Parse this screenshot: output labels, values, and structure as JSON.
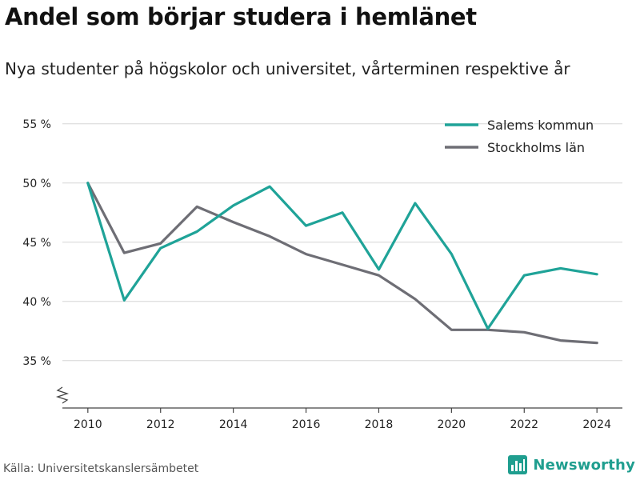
{
  "header": {
    "title": "Andel som börjar studera i hemlänet",
    "subtitle": "Nya studenter på högskolor och universitet, vårterminen respektive år"
  },
  "footer": {
    "source": "Källa: Universitetskanslersämbetet",
    "brand": "Newsworthy",
    "brand_icon": "bar-chart-logo-icon",
    "brand_color": "#1f9e8f"
  },
  "chart_data": {
    "type": "line",
    "title": "Andel som börjar studera i hemlänet",
    "subtitle": "Nya studenter på högskolor och universitet, vårterminen respektive år",
    "x": [
      2010,
      2011,
      2012,
      2013,
      2014,
      2015,
      2016,
      2017,
      2018,
      2019,
      2020,
      2021,
      2022,
      2023,
      2024
    ],
    "x_ticks": [
      2010,
      2012,
      2014,
      2016,
      2018,
      2020,
      2022,
      2024
    ],
    "x_tick_labels": [
      "2010",
      "2012",
      "2014",
      "2016",
      "2018",
      "2020",
      "2022",
      "2024"
    ],
    "y_ticks": [
      35,
      40,
      45,
      50,
      55
    ],
    "y_tick_labels": [
      "35 %",
      "40 %",
      "45 %",
      "50 %",
      "55 %"
    ],
    "ylim": [
      31,
      56
    ],
    "xlim": [
      2009.3,
      2024.7
    ],
    "y_axis_break": true,
    "grid": "horizontal",
    "legend_position": "top-right",
    "series": [
      {
        "name": "Salems kommun",
        "color": "#1fa398",
        "values": [
          50.0,
          40.1,
          44.5,
          45.9,
          48.1,
          49.7,
          46.4,
          47.5,
          42.7,
          48.3,
          44.0,
          37.7,
          42.2,
          42.8,
          42.3
        ]
      },
      {
        "name": "Stockholms län",
        "color": "#6e6e75",
        "values": [
          50.0,
          44.1,
          44.9,
          48.0,
          46.7,
          45.5,
          44.0,
          43.1,
          42.2,
          40.2,
          37.6,
          37.6,
          37.4,
          36.7,
          36.5
        ]
      }
    ]
  }
}
